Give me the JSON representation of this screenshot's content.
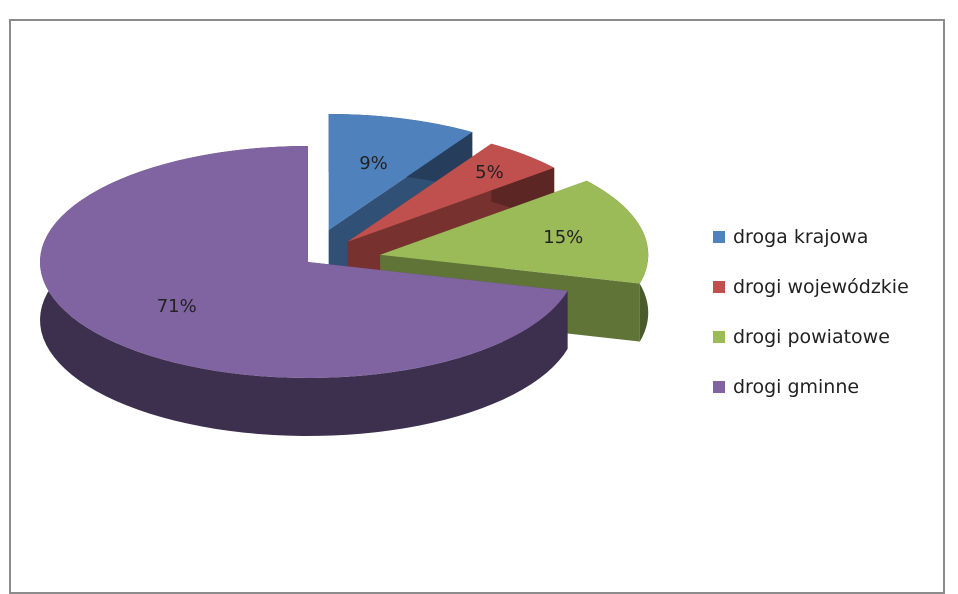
{
  "chart_data": {
    "type": "pie",
    "title": "",
    "categories": [
      "droga krajowa",
      "drogi wojewódzkie",
      "drogi powiatowe",
      "drogi gminne"
    ],
    "values": [
      9,
      5,
      15,
      71
    ],
    "labels": [
      "9%",
      "5%",
      "15%",
      "71%"
    ],
    "colors": [
      "#4f81bd",
      "#c0504d",
      "#9bbb59",
      "#8064a2"
    ],
    "legend_position": "right",
    "style": "3d-exploded"
  }
}
